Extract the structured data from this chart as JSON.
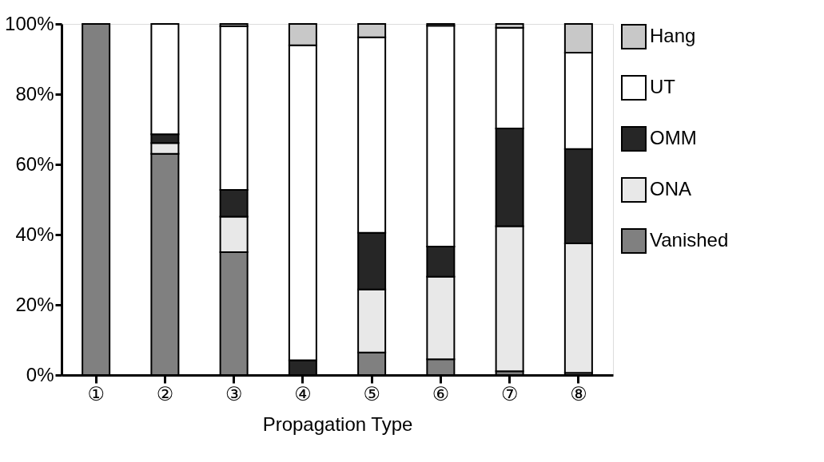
{
  "chart_data": {
    "type": "bar",
    "stacked": true,
    "xlabel": "Propagation Type",
    "categories": [
      "①",
      "②",
      "③",
      "④",
      "⑤",
      "⑥",
      "⑦",
      "⑧"
    ],
    "series": [
      {
        "name": "Vanished",
        "color": "#808080",
        "values": [
          100,
          63,
          35,
          0,
          6.4,
          4.5,
          1.1,
          0.6
        ]
      },
      {
        "name": "ONA",
        "color": "#e8e8e8",
        "values": [
          0,
          3.1,
          10.1,
          0,
          18,
          23.5,
          41.3,
          36.9
        ]
      },
      {
        "name": "OMM",
        "color": "#262626",
        "values": [
          0,
          2.5,
          7.6,
          4.2,
          16.1,
          8.6,
          27.8,
          26.9
        ]
      },
      {
        "name": "UT",
        "color": "#ffffff",
        "values": [
          0,
          31.4,
          46.7,
          89.7,
          55.7,
          62.9,
          28.7,
          27.4
        ]
      },
      {
        "name": "Hang",
        "color": "#c8c8c8",
        "values": [
          0,
          0,
          0.6,
          6.1,
          3.8,
          0.5,
          1.1,
          8.2
        ]
      }
    ],
    "ylim": [
      0,
      100
    ],
    "yticks": [
      {
        "value": 0,
        "label": "0%"
      },
      {
        "value": 20,
        "label": "20%"
      },
      {
        "value": 40,
        "label": "40%"
      },
      {
        "value": 60,
        "label": "60%"
      },
      {
        "value": 80,
        "label": "80%"
      },
      {
        "value": 100,
        "label": "100%"
      }
    ],
    "grid": false,
    "legend": "right"
  }
}
